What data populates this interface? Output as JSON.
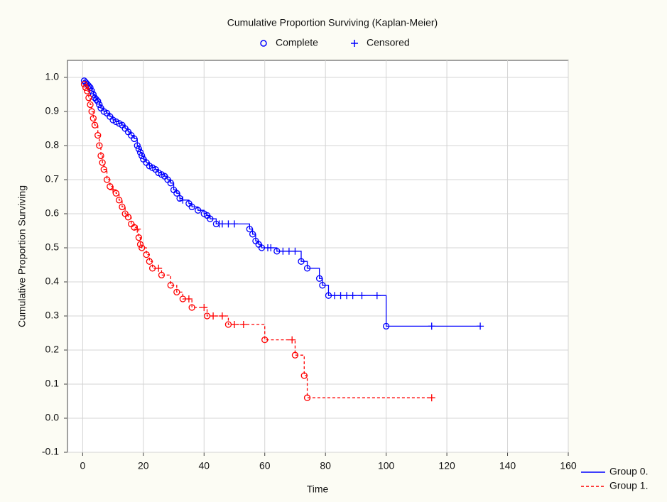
{
  "chart_data": {
    "type": "km",
    "title": "Cumulative Proportion Surviving (Kaplan-Meier)",
    "marker_legend": [
      "Complete",
      "Censored"
    ],
    "x_label": "Time",
    "y_label": "Cumulative Proportion Surviving",
    "xlim": [
      -5,
      160
    ],
    "xticks": [
      0,
      20,
      40,
      60,
      80,
      100,
      120,
      140,
      160
    ],
    "ylim": [
      -0.1,
      1.05
    ],
    "yticks": [
      {
        "value": -0.1,
        "label": "-0.1"
      },
      {
        "value": 0,
        "label": "0.0"
      },
      {
        "value": 0.1,
        "label": "0.1"
      },
      {
        "value": 0.2,
        "label": "0.2"
      },
      {
        "value": 0.3,
        "label": "0.3"
      },
      {
        "value": 0.4,
        "label": "0.4"
      },
      {
        "value": 0.5,
        "label": "0.5"
      },
      {
        "value": 0.6,
        "label": "0.6"
      },
      {
        "value": 0.7,
        "label": "0.7"
      },
      {
        "value": 0.8,
        "label": "0.8"
      },
      {
        "value": 0.9,
        "label": "0.9"
      },
      {
        "value": 1.0,
        "label": "1.0"
      }
    ],
    "grid": true,
    "series": [
      {
        "name": "Group 0.",
        "color": "#0000ff",
        "dashed": false,
        "x": [
          0.5,
          1,
          1.5,
          2,
          2.5,
          3,
          3.5,
          4,
          4.5,
          5,
          5.5,
          6,
          7,
          8,
          9,
          10,
          11,
          12,
          13,
          14,
          15,
          16,
          17,
          18,
          18.5,
          19,
          19.5,
          20,
          21,
          22,
          23,
          24,
          25,
          26,
          27,
          28,
          29,
          30,
          31,
          32,
          33,
          35,
          36,
          38,
          40,
          41,
          42,
          44,
          45,
          46,
          48,
          50,
          55,
          56,
          57,
          58,
          59,
          61,
          62,
          64,
          66,
          68,
          70,
          72,
          74,
          78,
          79,
          81,
          83,
          85,
          87,
          89,
          92,
          97,
          100,
          115,
          131
        ],
        "values": [
          0.99,
          0.985,
          0.98,
          0.975,
          0.97,
          0.96,
          0.95,
          0.94,
          0.935,
          0.93,
          0.92,
          0.91,
          0.9,
          0.895,
          0.885,
          0.875,
          0.87,
          0.865,
          0.86,
          0.85,
          0.84,
          0.83,
          0.82,
          0.8,
          0.79,
          0.78,
          0.77,
          0.76,
          0.75,
          0.74,
          0.735,
          0.73,
          0.72,
          0.715,
          0.71,
          0.7,
          0.69,
          0.67,
          0.66,
          0.645,
          0.64,
          0.63,
          0.62,
          0.61,
          0.6,
          0.595,
          0.585,
          0.57,
          0.57,
          0.57,
          0.57,
          0.57,
          0.555,
          0.54,
          0.52,
          0.51,
          0.5,
          0.5,
          0.5,
          0.49,
          0.49,
          0.49,
          0.49,
          0.46,
          0.44,
          0.41,
          0.39,
          0.36,
          0.36,
          0.36,
          0.36,
          0.36,
          0.36,
          0.36,
          0.27,
          0.27,
          0.27
        ],
        "censored": [
          false,
          false,
          false,
          false,
          false,
          false,
          false,
          false,
          false,
          false,
          false,
          false,
          false,
          false,
          false,
          false,
          false,
          false,
          false,
          false,
          false,
          false,
          false,
          false,
          false,
          false,
          false,
          false,
          false,
          false,
          false,
          false,
          false,
          false,
          false,
          false,
          false,
          false,
          false,
          false,
          true,
          false,
          false,
          false,
          false,
          false,
          false,
          false,
          true,
          true,
          true,
          true,
          false,
          false,
          false,
          false,
          false,
          true,
          true,
          false,
          true,
          true,
          true,
          false,
          false,
          false,
          false,
          false,
          true,
          true,
          true,
          true,
          true,
          true,
          false,
          true,
          true
        ]
      },
      {
        "name": "Group 1.",
        "color": "#ff0000",
        "dashed": true,
        "x": [
          0.5,
          1,
          1.5,
          2,
          2.5,
          3,
          3.5,
          4,
          5,
          5.5,
          6,
          6.5,
          7,
          8,
          9,
          10,
          11,
          12,
          13,
          14,
          15,
          16,
          17,
          18,
          18.5,
          19,
          19.5,
          21,
          22,
          23,
          25,
          26,
          29,
          31,
          33,
          35,
          36,
          40,
          41,
          43,
          46,
          48,
          50,
          53,
          60,
          69,
          70,
          73,
          74,
          115
        ],
        "values": [
          0.98,
          0.97,
          0.96,
          0.94,
          0.92,
          0.9,
          0.88,
          0.86,
          0.83,
          0.8,
          0.77,
          0.75,
          0.73,
          0.7,
          0.68,
          0.67,
          0.66,
          0.64,
          0.62,
          0.6,
          0.59,
          0.57,
          0.56,
          0.555,
          0.53,
          0.51,
          0.5,
          0.48,
          0.46,
          0.44,
          0.44,
          0.42,
          0.39,
          0.37,
          0.35,
          0.35,
          0.325,
          0.325,
          0.3,
          0.3,
          0.3,
          0.275,
          0.275,
          0.275,
          0.23,
          0.23,
          0.185,
          0.125,
          0.06,
          0.06
        ],
        "censored": [
          false,
          false,
          false,
          false,
          false,
          false,
          false,
          false,
          false,
          false,
          false,
          false,
          false,
          false,
          false,
          true,
          false,
          false,
          false,
          false,
          false,
          false,
          false,
          true,
          false,
          false,
          false,
          false,
          false,
          false,
          true,
          false,
          false,
          false,
          false,
          true,
          false,
          true,
          false,
          true,
          true,
          false,
          true,
          true,
          false,
          true,
          false,
          false,
          false,
          true
        ]
      }
    ]
  }
}
